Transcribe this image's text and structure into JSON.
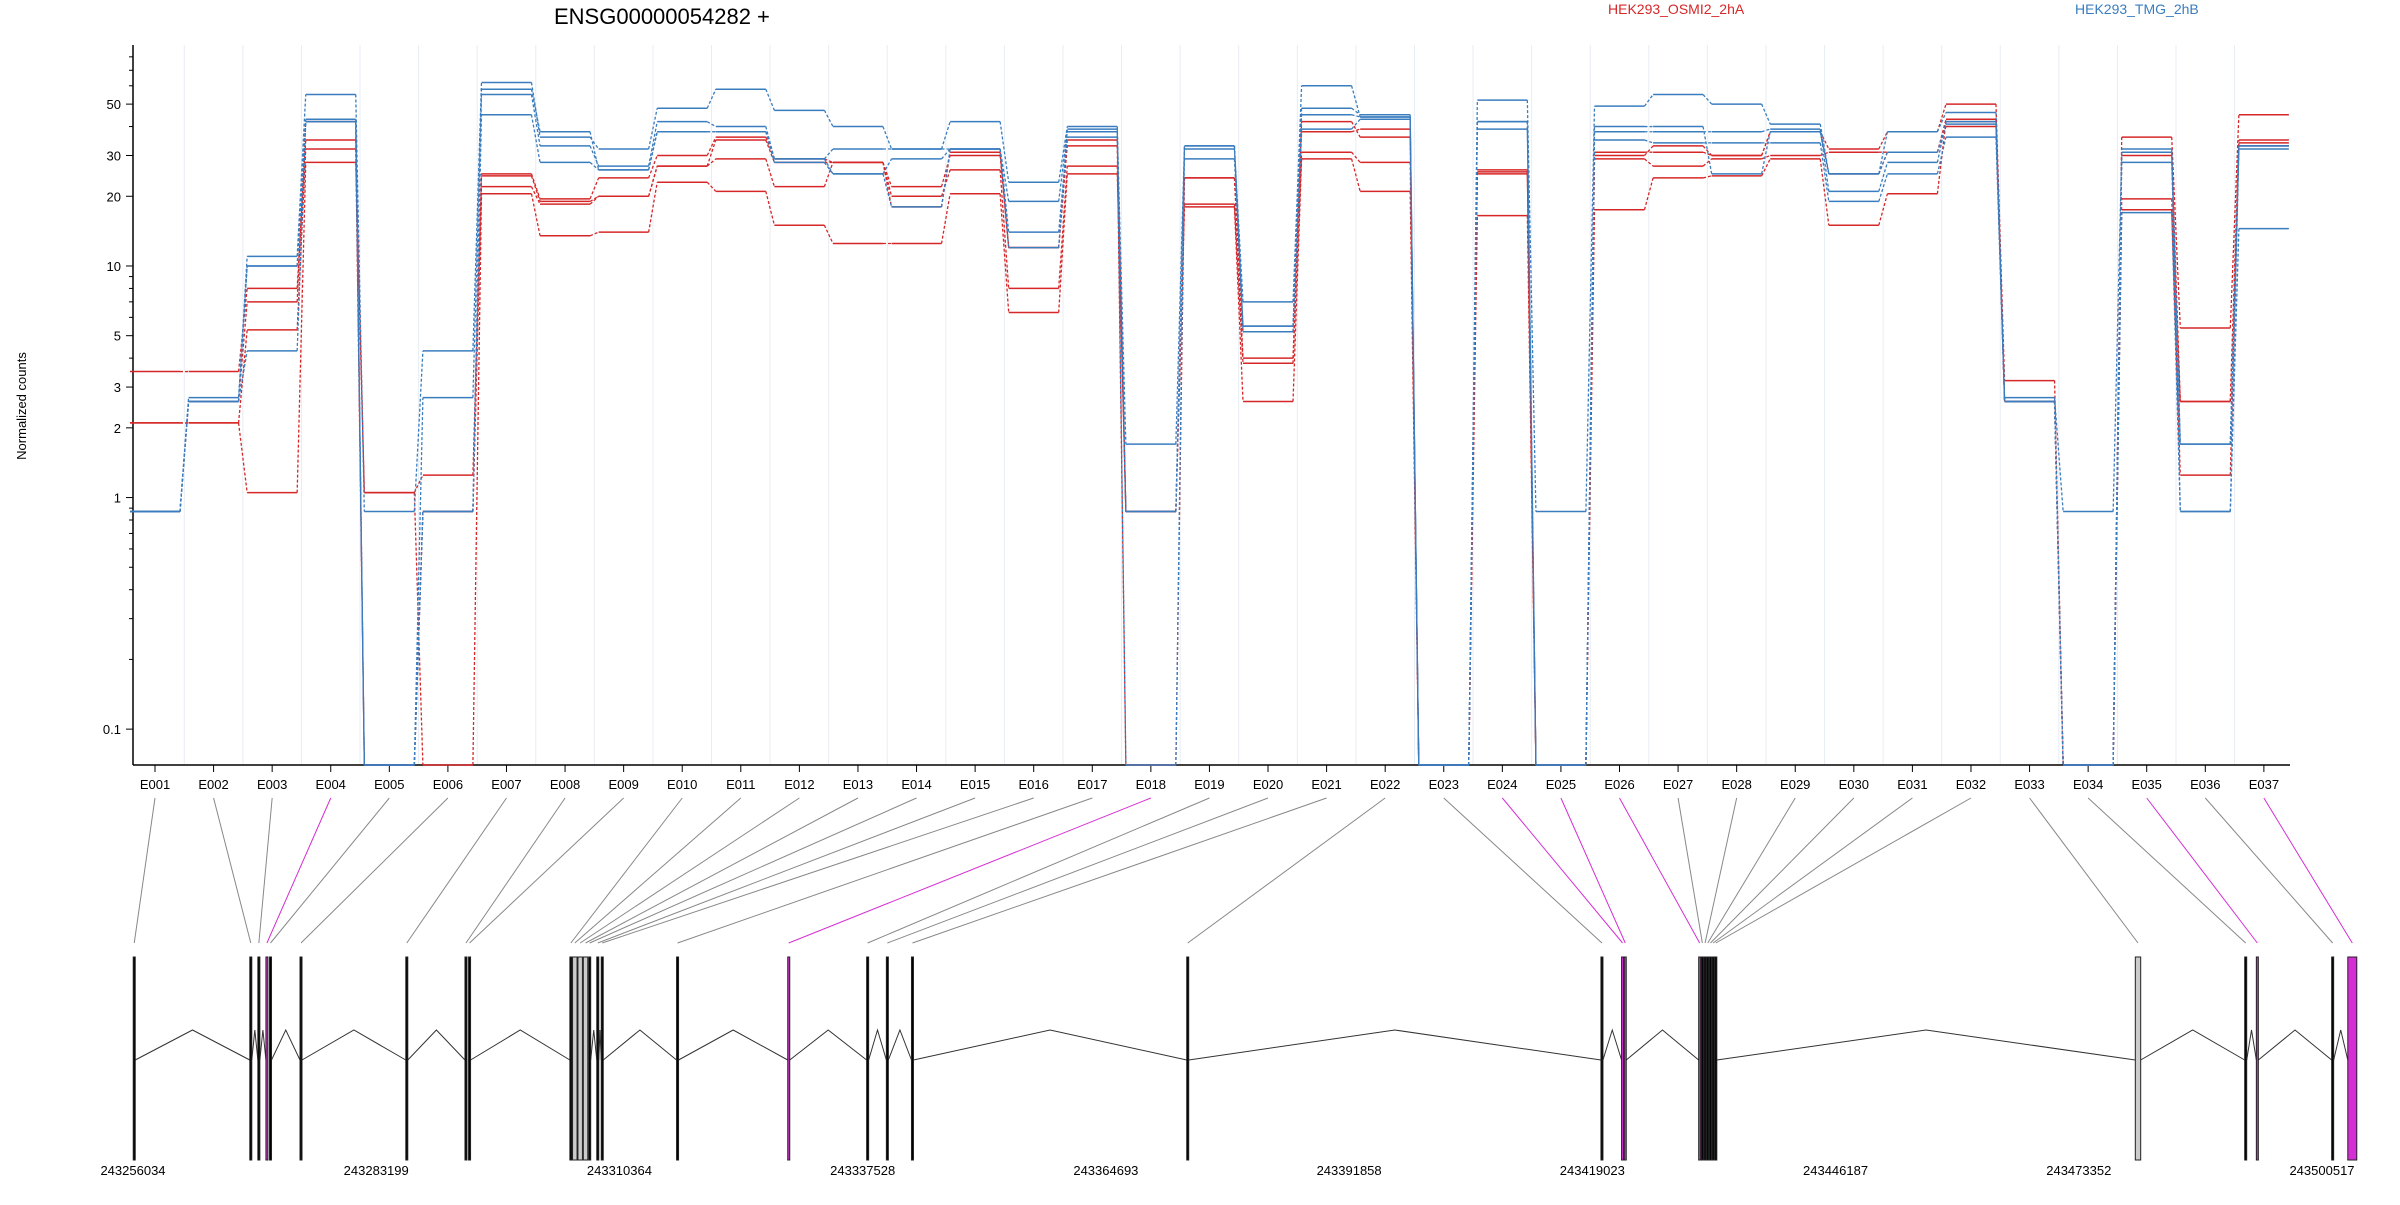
{
  "chart_data": {
    "type": "line",
    "title": "ENSG00000054282 +",
    "ylabel": "Normalized counts",
    "yscale": "log",
    "ylim": [
      0.07,
      90
    ],
    "yticks": [
      0.1,
      1,
      2,
      3,
      5,
      10,
      20,
      30,
      50
    ],
    "ytick_labels": [
      "0.1",
      "1",
      "2",
      "3",
      "5",
      "10",
      "20",
      "30",
      "50"
    ],
    "categories": [
      "E001",
      "E002",
      "E003",
      "E004",
      "E005",
      "E006",
      "E007",
      "E008",
      "E009",
      "E010",
      "E011",
      "E012",
      "E013",
      "E014",
      "E015",
      "E016",
      "E017",
      "E018",
      "E019",
      "E020",
      "E021",
      "E022",
      "E023",
      "E024",
      "E025",
      "E026",
      "E027",
      "E028",
      "E029",
      "E030",
      "E031",
      "E032",
      "E033",
      "E034",
      "E035",
      "E036",
      "E037"
    ],
    "legend": [
      {
        "name": "HEK293_OSMI2_2hA",
        "color": "#d62728"
      },
      {
        "name": "HEK293_TMG_2hB",
        "color": "#3a7dbf"
      }
    ],
    "series": [
      {
        "name": "HEK293_OSMI2_2hA",
        "color": "#d62728",
        "values": [
          3.5,
          3.5,
          8,
          35,
          1.05,
          1.25,
          25,
          19.5,
          24,
          30,
          36,
          29,
          28,
          22,
          30,
          12,
          33,
          0.07,
          24,
          4,
          42,
          36,
          0.07,
          26,
          0.07,
          30,
          33,
          30,
          38,
          32,
          38,
          50,
          3.2,
          0.07,
          36,
          5.4,
          45
        ]
      },
      {
        "name": "HEK293_OSMI2_2hA",
        "color": "#d62728",
        "values": [
          2.1,
          2.1,
          5.3,
          32,
          0.07,
          0.87,
          22,
          18.5,
          20,
          27,
          29,
          22,
          28,
          20,
          26,
          8,
          27,
          0.87,
          18.5,
          3.8,
          31,
          28,
          0.07,
          25,
          0.07,
          29,
          27,
          29,
          30,
          31,
          31,
          40,
          2.6,
          0.07,
          19.5,
          2.6,
          34
        ]
      },
      {
        "name": "HEK293_OSMI2_2hA",
        "color": "#d62728",
        "values": [
          2.1,
          2.1,
          1.05,
          28,
          1.05,
          0.07,
          20.5,
          13.5,
          14,
          23,
          21,
          15,
          12.5,
          12.5,
          20.5,
          6.3,
          25,
          0.87,
          18,
          2.6,
          29,
          21,
          0.07,
          16.5,
          0.07,
          17.5,
          24,
          24.5,
          29,
          15,
          20.5,
          42,
          2.6,
          0.07,
          17.5,
          1.25,
          33
        ]
      },
      {
        "name": "HEK293_OSMI2_2hA",
        "color": "#d62728",
        "values": [
          0.87,
          2.6,
          7,
          42,
          0.07,
          0.87,
          24.5,
          19,
          20,
          27,
          35,
          28,
          28,
          18,
          31,
          12,
          35,
          0.87,
          24,
          5.2,
          38,
          39,
          0.07,
          25.5,
          0.07,
          31,
          31,
          30,
          38,
          25,
          31,
          43,
          2.6,
          0.07,
          30,
          2.6,
          35
        ]
      },
      {
        "name": "HEK293_TMG_2hB",
        "color": "#3a7dbf",
        "values": [
          0.87,
          2.6,
          11,
          55,
          0.87,
          4.3,
          62,
          36,
          32,
          48,
          58,
          47,
          40,
          32,
          42,
          23,
          40,
          0.87,
          32,
          7,
          60,
          44,
          0.07,
          52,
          0.87,
          49,
          55,
          50,
          41,
          25,
          38,
          46,
          2.6,
          0.07,
          32,
          1.7,
          33
        ]
      },
      {
        "name": "HEK293_TMG_2hB",
        "color": "#3a7dbf",
        "values": [
          0.87,
          2.6,
          10,
          42,
          0.07,
          2.7,
          55,
          33,
          27,
          42,
          40,
          29,
          32,
          32,
          32,
          19,
          38,
          1.7,
          33,
          5.5,
          48,
          45,
          0.07,
          42,
          0.07,
          38,
          38,
          38,
          39,
          21,
          28,
          42,
          2.6,
          0.07,
          28,
          1.7,
          33
        ]
      },
      {
        "name": "HEK293_TMG_2hB",
        "color": "#3a7dbf",
        "values": [
          0.87,
          2.6,
          4.3,
          42,
          0.07,
          0.87,
          45,
          28,
          26,
          38,
          38,
          28,
          25,
          18,
          32,
          14,
          36,
          0.87,
          29,
          5.5,
          39,
          43,
          0.07,
          39,
          0.07,
          35,
          34,
          34,
          34,
          19,
          25,
          36,
          2.6,
          0.07,
          17,
          0.87,
          14.5
        ]
      },
      {
        "name": "HEK293_TMG_2hB",
        "color": "#3a7dbf",
        "values": [
          0.87,
          2.7,
          10,
          43,
          0.07,
          0.87,
          58,
          38,
          26,
          38,
          38,
          29,
          25,
          29,
          32,
          12,
          39,
          0.07,
          33,
          5.2,
          45,
          44,
          0.07,
          42,
          0.07,
          40,
          40,
          25,
          38,
          25,
          31,
          41,
          2.7,
          0.87,
          31,
          0.87,
          32
        ]
      }
    ],
    "gene_model": {
      "coordinate_labels": [
        "243256034",
        "243283199",
        "243310364",
        "243337528",
        "243364693",
        "243391858",
        "243419023",
        "243446187",
        "243473352",
        "243500517"
      ],
      "start": 243256034,
      "end": 243500517,
      "exons": [
        {
          "id": "E001",
          "start": 243256060,
          "end": 243256260,
          "highlight": false
        },
        {
          "id": "E002",
          "start": 243269060,
          "end": 243269260,
          "highlight": false
        },
        {
          "id": "E003",
          "start": 243269960,
          "end": 243270160,
          "highlight": false
        },
        {
          "id": "E004",
          "start": 243270860,
          "end": 243271060,
          "highlight": true
        },
        {
          "id": "E005",
          "start": 243271260,
          "end": 243271460,
          "highlight": false
        },
        {
          "id": "E006",
          "start": 243274660,
          "end": 243274860,
          "highlight": false
        },
        {
          "id": "E007",
          "start": 243286460,
          "end": 243286660,
          "highlight": false
        },
        {
          "id": "E008",
          "start": 243293060,
          "end": 243293260,
          "highlight": false
        },
        {
          "id": "E009",
          "start": 243293460,
          "end": 243293660,
          "highlight": false
        },
        {
          "id": "E010",
          "start": 243304760,
          "end": 243304960,
          "highlight": false
        },
        {
          "id": "E011",
          "start": 243305060,
          "end": 243305560,
          "highlight": false
        },
        {
          "id": "E012",
          "start": 243305660,
          "end": 243306160,
          "highlight": false
        },
        {
          "id": "E013",
          "start": 243306260,
          "end": 243306760,
          "highlight": false
        },
        {
          "id": "E014",
          "start": 243306860,
          "end": 243307060,
          "highlight": false
        },
        {
          "id": "E015",
          "start": 243307760,
          "end": 243307960,
          "highlight": false
        },
        {
          "id": "E016",
          "start": 243308260,
          "end": 243308460,
          "highlight": false
        },
        {
          "id": "E017",
          "start": 243316660,
          "end": 243316860,
          "highlight": false
        },
        {
          "id": "E018",
          "start": 243329060,
          "end": 243329260,
          "highlight": true
        },
        {
          "id": "E019",
          "start": 243337860,
          "end": 243338060,
          "highlight": false
        },
        {
          "id": "E020",
          "start": 243340060,
          "end": 243340260,
          "highlight": false
        },
        {
          "id": "E021",
          "start": 243342860,
          "end": 243343060,
          "highlight": false
        },
        {
          "id": "E022",
          "start": 243373560,
          "end": 243373760,
          "highlight": false
        },
        {
          "id": "E023",
          "start": 243419760,
          "end": 243419960,
          "highlight": false
        },
        {
          "id": "E024",
          "start": 243422060,
          "end": 243422260,
          "highlight": true
        },
        {
          "id": "E025",
          "start": 243422360,
          "end": 243422560,
          "highlight": true
        },
        {
          "id": "E026",
          "start": 243430660,
          "end": 243430860,
          "highlight": true
        },
        {
          "id": "E027",
          "start": 243430960,
          "end": 243431160,
          "highlight": false
        },
        {
          "id": "E028",
          "start": 243431260,
          "end": 243431460,
          "highlight": false
        },
        {
          "id": "E029",
          "start": 243431560,
          "end": 243431760,
          "highlight": false
        },
        {
          "id": "E030",
          "start": 243431860,
          "end": 243432060,
          "highlight": false
        },
        {
          "id": "E031",
          "start": 243432160,
          "end": 243432360,
          "highlight": false
        },
        {
          "id": "E032",
          "start": 243432460,
          "end": 243432660,
          "highlight": false
        },
        {
          "id": "E033",
          "start": 243479360,
          "end": 243479960,
          "highlight": false
        },
        {
          "id": "E034",
          "start": 243491560,
          "end": 243491760,
          "highlight": false
        },
        {
          "id": "E035",
          "start": 243492860,
          "end": 243493060,
          "highlight": true
        },
        {
          "id": "E036",
          "start": 243501260,
          "end": 243501460,
          "highlight": false
        },
        {
          "id": "E037",
          "start": 243503060,
          "end": 243504060,
          "highlight": true
        }
      ]
    },
    "colors": {
      "osmi2": "#d62728",
      "tmg": "#3a7dbf",
      "highlight_exon": "#d42fd4",
      "exon_gray": "#cccccc",
      "axis": "#000000",
      "grid": "#e8edf4"
    }
  }
}
